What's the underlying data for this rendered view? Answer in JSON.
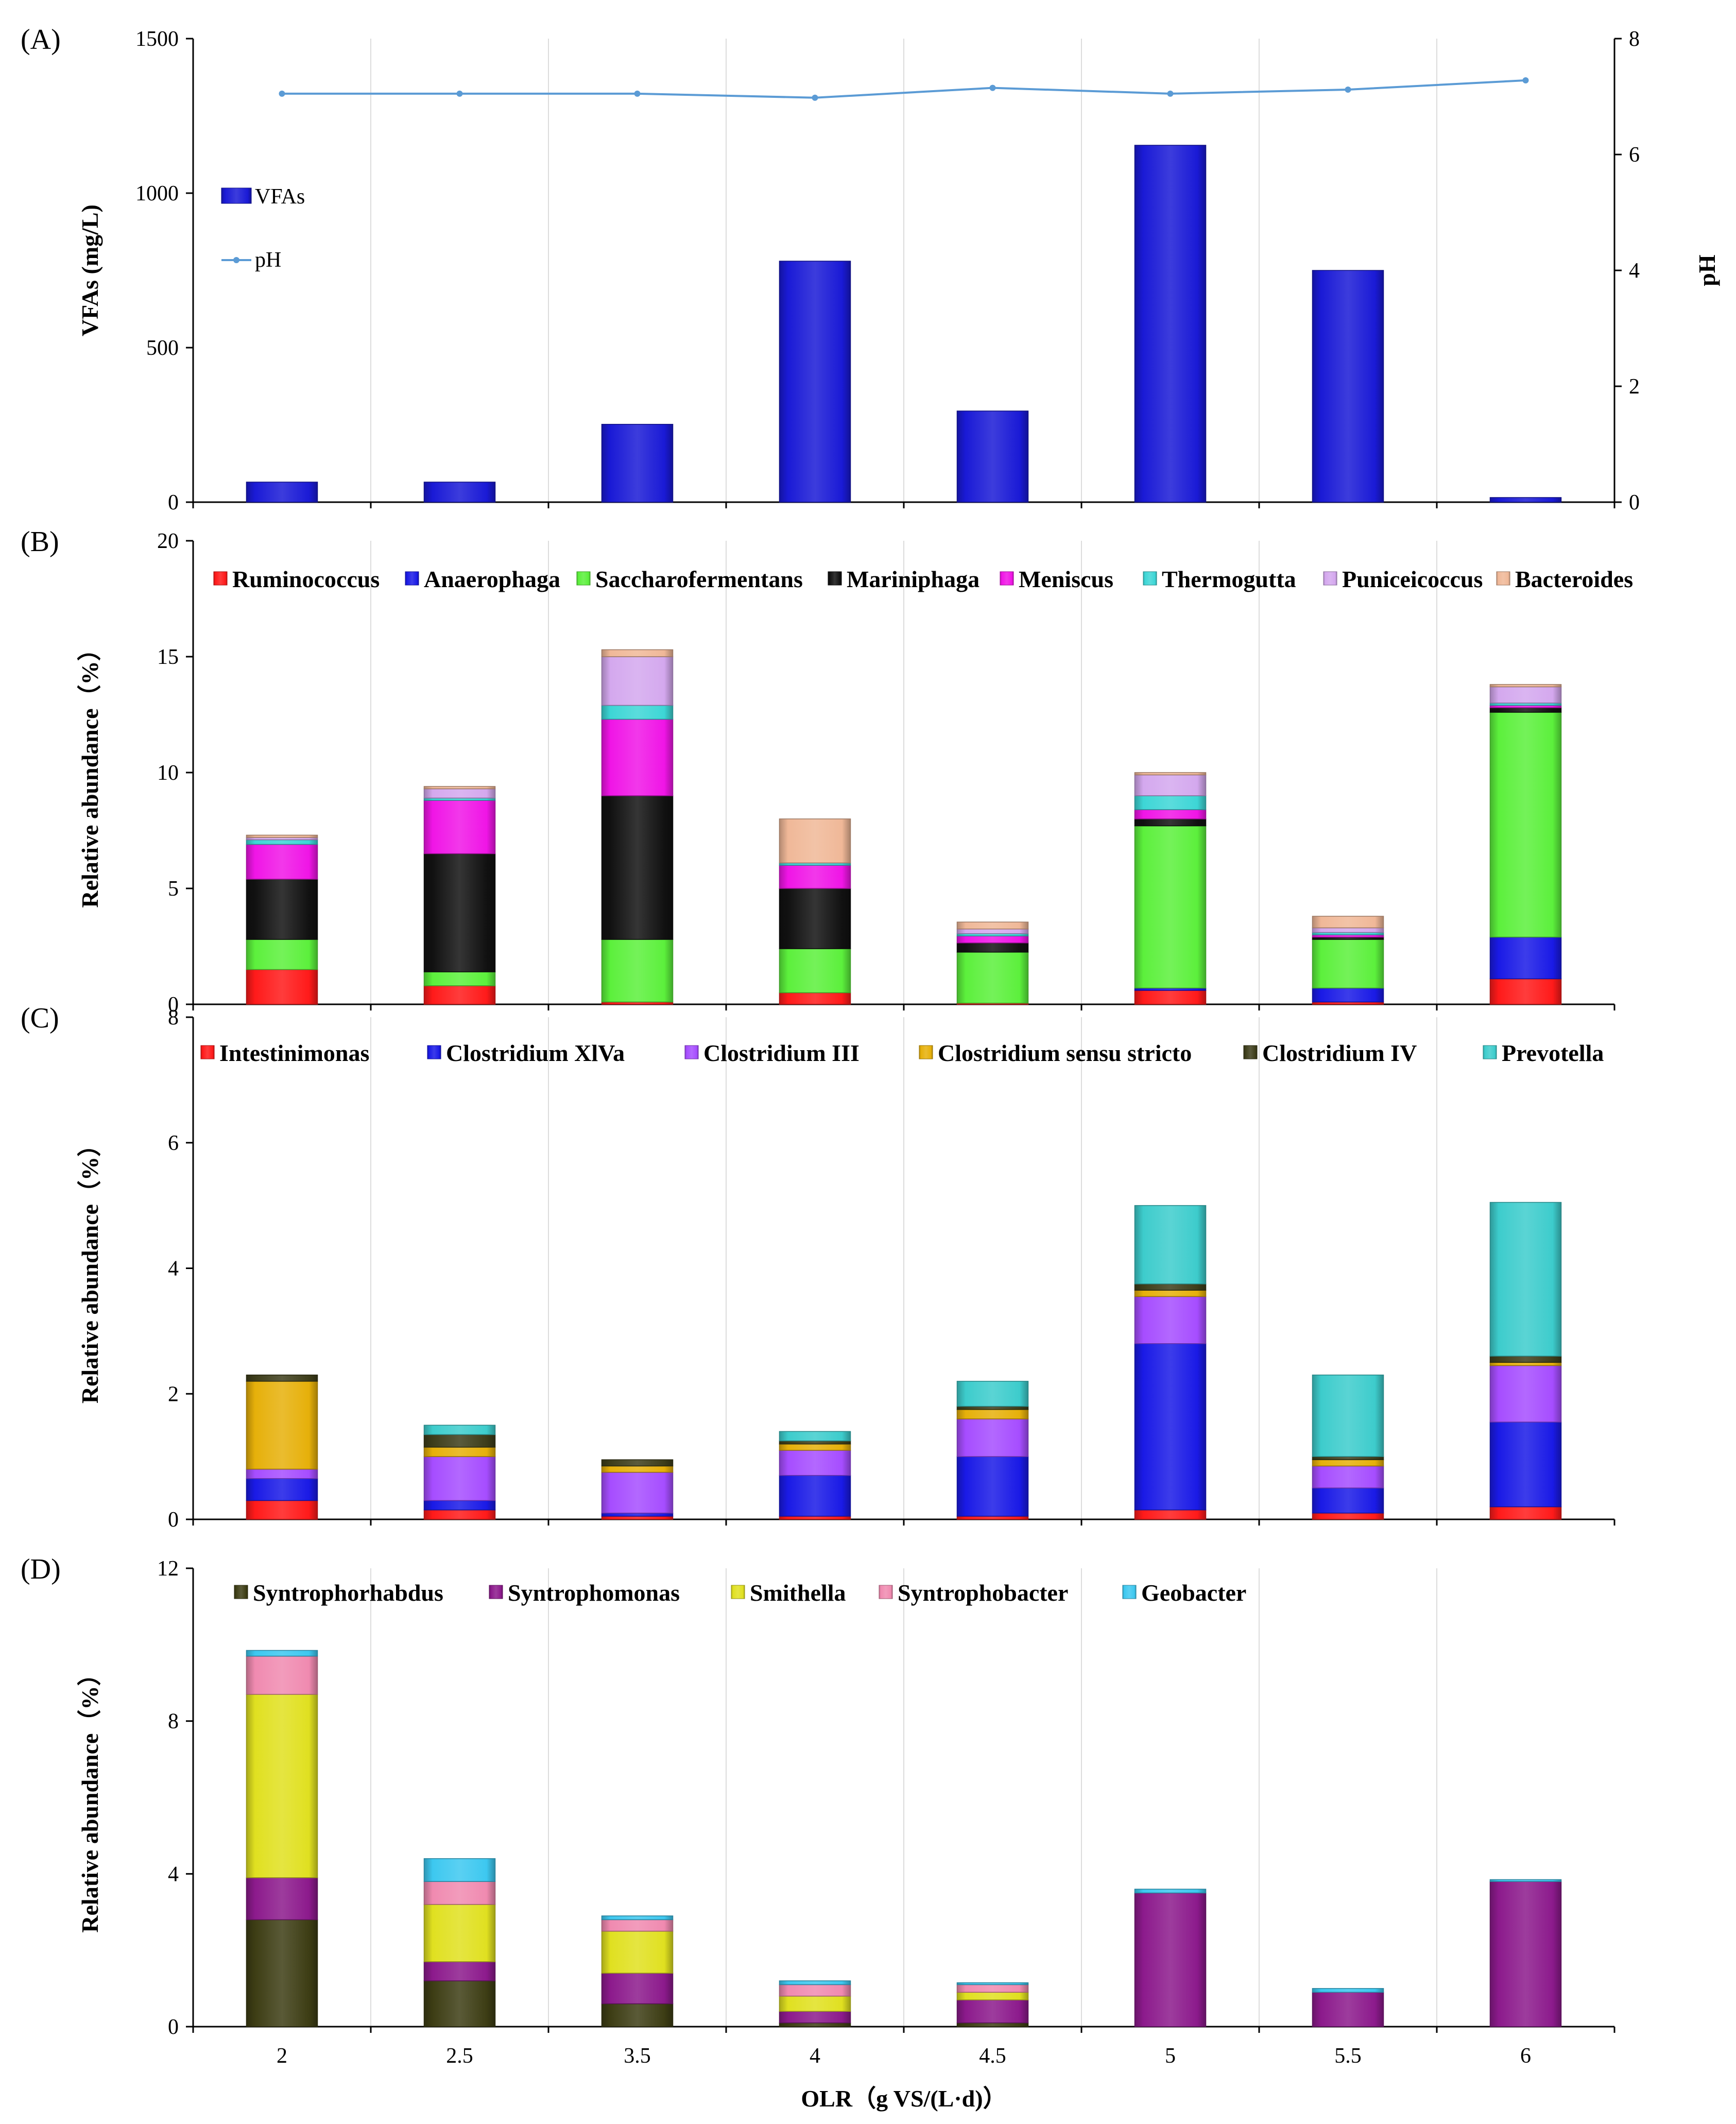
{
  "figure": {
    "x_categories": [
      "2",
      "2.5",
      "3.5",
      "4",
      "4.5",
      "5",
      "5.5",
      "6"
    ],
    "x_axis_label": "OLR（g VS/(L·d)）"
  },
  "chart_data": [
    {
      "panel": "(A)",
      "type": "bar",
      "categories": [
        "2",
        "2.5",
        "3.5",
        "4",
        "4.5",
        "5",
        "5.5",
        "6"
      ],
      "series": [
        {
          "name": "VFAs",
          "kind": "bar",
          "axis": "left",
          "color": "#1a1ad6",
          "values": [
            65,
            65,
            252,
            780,
            295,
            1155,
            750,
            15
          ]
        },
        {
          "name": "pH",
          "kind": "line",
          "axis": "right",
          "color": "#5b9bd5",
          "values": [
            7.05,
            7.05,
            7.05,
            6.98,
            7.15,
            7.05,
            7.12,
            7.28
          ]
        }
      ],
      "ylabel": "VFAs (mg/L)",
      "ylim": [
        0,
        1500
      ],
      "yticks": [
        0,
        500,
        1000,
        1500
      ],
      "y2label": "pH",
      "y2lim": [
        0,
        8
      ],
      "y2ticks": [
        0,
        2,
        4,
        6,
        8
      ],
      "legend": "upper-left"
    },
    {
      "panel": "(B)",
      "type": "bar",
      "stacked": true,
      "categories": [
        "2",
        "2.5",
        "3.5",
        "4",
        "4.5",
        "5",
        "5.5",
        "6"
      ],
      "series": [
        {
          "name": "Ruminococcus",
          "color": "#ff1a1a",
          "values": [
            1.5,
            0.8,
            0.1,
            0.5,
            0.05,
            0.6,
            0.1,
            1.1
          ]
        },
        {
          "name": "Anaerophaga",
          "color": "#1a1ae6",
          "values": [
            0.0,
            0.0,
            0.0,
            0.0,
            0.0,
            0.1,
            0.6,
            1.8
          ]
        },
        {
          "name": "Saccharofermentans",
          "color": "#5cf03c",
          "values": [
            1.3,
            0.6,
            2.7,
            1.9,
            2.2,
            7.0,
            2.1,
            9.7
          ]
        },
        {
          "name": "Mariniphaga",
          "color": "#111111",
          "values": [
            2.6,
            5.1,
            6.2,
            2.6,
            0.4,
            0.3,
            0.1,
            0.2
          ]
        },
        {
          "name": "Meniscus",
          "color": "#f015e6",
          "values": [
            1.5,
            2.3,
            3.3,
            1.0,
            0.3,
            0.4,
            0.1,
            0.1
          ]
        },
        {
          "name": "Thermogutta",
          "color": "#3dd6d6",
          "values": [
            0.2,
            0.1,
            0.6,
            0.1,
            0.1,
            0.6,
            0.1,
            0.1
          ]
        },
        {
          "name": "Puniceicoccus",
          "color": "#d4a8ee",
          "values": [
            0.1,
            0.4,
            2.1,
            0.0,
            0.2,
            0.9,
            0.2,
            0.7
          ]
        },
        {
          "name": "Bacteroides",
          "color": "#f0b898",
          "values": [
            0.1,
            0.1,
            0.3,
            1.9,
            0.3,
            0.1,
            0.5,
            0.1
          ]
        }
      ],
      "ylabel": "Relative  abundance（%）",
      "ylim": [
        0,
        20
      ],
      "yticks": [
        0,
        5,
        10,
        15,
        20
      ],
      "legend": "top"
    },
    {
      "panel": "(C)",
      "type": "bar",
      "stacked": true,
      "categories": [
        "2",
        "2.5",
        "3.5",
        "4",
        "4.5",
        "5",
        "5.5",
        "6"
      ],
      "series": [
        {
          "name": "Intestinimonas",
          "color": "#ff1a1a",
          "values": [
            0.3,
            0.15,
            0.05,
            0.05,
            0.05,
            0.15,
            0.1,
            0.2
          ]
        },
        {
          "name": "Clostridium XlVa",
          "color": "#1a1ae6",
          "values": [
            0.35,
            0.15,
            0.05,
            0.65,
            0.95,
            2.65,
            0.4,
            1.35
          ]
        },
        {
          "name": "Clostridium III",
          "color": "#a64dff",
          "values": [
            0.15,
            0.7,
            0.65,
            0.4,
            0.6,
            0.75,
            0.35,
            0.9
          ]
        },
        {
          "name": "Clostridium sensu stricto",
          "color": "#e6b00a",
          "values": [
            1.4,
            0.15,
            0.1,
            0.1,
            0.15,
            0.1,
            0.1,
            0.05
          ]
        },
        {
          "name": "Clostridium IV",
          "color": "#3d3d1a",
          "values": [
            0.1,
            0.2,
            0.1,
            0.05,
            0.05,
            0.1,
            0.05,
            0.1
          ]
        },
        {
          "name": "Prevotella",
          "color": "#3dcccc",
          "values": [
            0.0,
            0.15,
            0.0,
            0.15,
            0.4,
            1.25,
            1.3,
            2.45
          ]
        }
      ],
      "ylabel": "Relative  abundance（%）",
      "ylim": [
        0,
        8
      ],
      "yticks": [
        0,
        2,
        4,
        6,
        8
      ],
      "legend": "top"
    },
    {
      "panel": "(D)",
      "type": "bar",
      "stacked": true,
      "categories": [
        "2",
        "2.5",
        "3.5",
        "4",
        "4.5",
        "5",
        "5.5",
        "6"
      ],
      "series": [
        {
          "name": "Syntrophorhabdus",
          "color": "#3d3d14",
          "values": [
            2.8,
            1.2,
            0.6,
            0.1,
            0.1,
            0.0,
            0.0,
            0.0
          ]
        },
        {
          "name": "Syntrophomonas",
          "color": "#8c1a8c",
          "values": [
            1.1,
            0.5,
            0.8,
            0.3,
            0.6,
            3.5,
            0.9,
            3.8
          ]
        },
        {
          "name": "Smithella",
          "color": "#e0e020",
          "values": [
            4.8,
            1.5,
            1.1,
            0.4,
            0.2,
            0.0,
            0.0,
            0.0
          ]
        },
        {
          "name": "Syntrophobacter",
          "color": "#f08ab0",
          "values": [
            1.0,
            0.6,
            0.3,
            0.3,
            0.2,
            0.0,
            0.0,
            0.0
          ]
        },
        {
          "name": "Geobacter",
          "color": "#3dc8f0",
          "values": [
            0.15,
            0.6,
            0.1,
            0.1,
            0.05,
            0.1,
            0.1,
            0.05
          ]
        }
      ],
      "ylabel": "Relative  abundance（%）",
      "ylim": [
        0,
        12
      ],
      "yticks": [
        0,
        4,
        8,
        12
      ],
      "xlabel": "OLR（g VS/(L·d)）",
      "legend": "top"
    }
  ]
}
